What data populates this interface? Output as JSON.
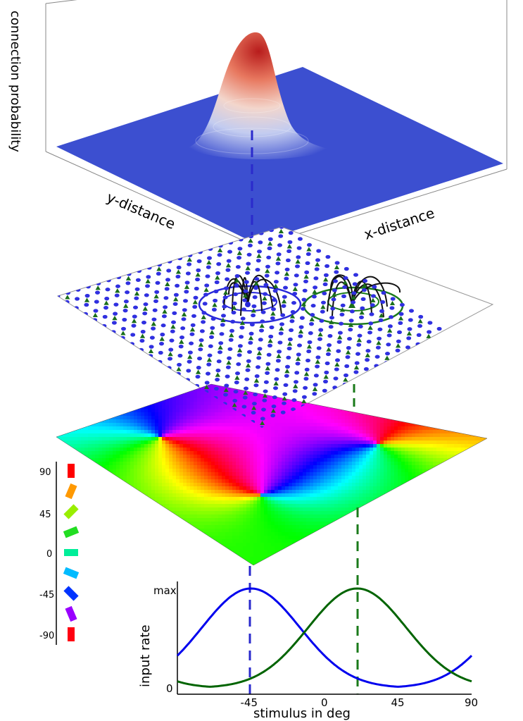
{
  "top_panel": {
    "z_label": "connection probability",
    "y_label": "y-distance",
    "x_label": "x-distance"
  },
  "legend": {
    "ticks": [
      "90",
      "45",
      "0",
      "-45",
      "-90"
    ],
    "bar_colors": [
      "#ff0000",
      "#ff9900",
      "#99ee00",
      "#22dd22",
      "#00ee99",
      "#00bbff",
      "#0033ff",
      "#9900ff",
      "#ff0011"
    ]
  },
  "colors": {
    "blue_neuron": "#3030e0",
    "green_neuron": "#1a6e1a",
    "surface_base": "#3c4fd0",
    "blue_curve": "#0000ee",
    "green_curve": "#006400"
  },
  "chart_data": {
    "type": "line",
    "xlabel": "stimulus in deg",
    "ylabel": "input rate",
    "xlim": [
      -90,
      90
    ],
    "x_ticks": [
      "-45",
      "0",
      "45",
      "90"
    ],
    "y_ticks": [
      "max",
      "0"
    ],
    "x_tick_values": [
      -45,
      0,
      45,
      90
    ],
    "series": [
      {
        "color": "#0000ee",
        "center": -45,
        "width": 30,
        "base": 0.06,
        "peak": 1.0
      },
      {
        "color": "#006400",
        "center": 20,
        "width": 30,
        "base": 0.06,
        "peak": 1.0
      }
    ],
    "markers": [
      {
        "x": -45,
        "color": "#2a2acc"
      },
      {
        "x": 20,
        "color": "#1a7a1a"
      }
    ]
  }
}
